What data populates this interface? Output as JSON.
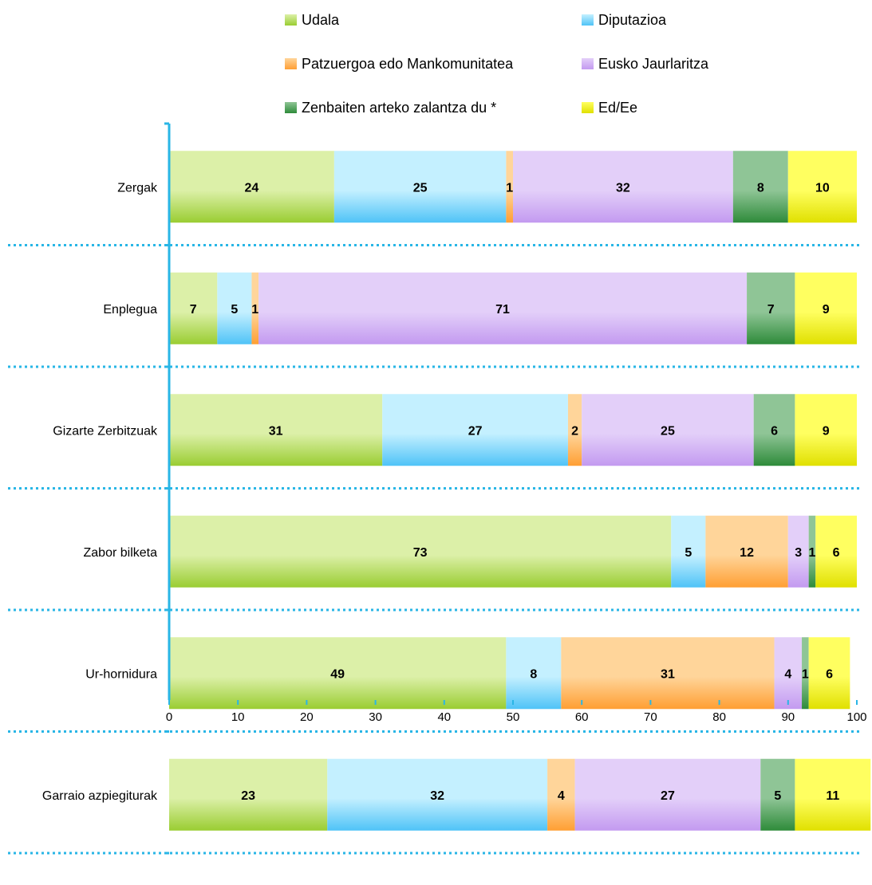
{
  "chart_data": {
    "type": "bar",
    "orientation": "horizontal",
    "stacked": true,
    "categories": [
      "Zergak",
      "Enplegua",
      "Gizarte Zerbitzuak",
      "Zabor bilketa",
      "Ur-hornidura",
      "Garraio azpiegiturak"
    ],
    "series": [
      {
        "name": "Udala",
        "values": [
          24,
          7,
          31,
          73,
          49,
          23
        ]
      },
      {
        "name": "Diputazioa",
        "values": [
          25,
          5,
          27,
          5,
          8,
          32
        ]
      },
      {
        "name": "Patzuergoa edo Mankomunitatea",
        "values": [
          1,
          1,
          2,
          12,
          31,
          4
        ]
      },
      {
        "name": "Eusko Jaurlaritza",
        "values": [
          32,
          71,
          25,
          3,
          4,
          27
        ]
      },
      {
        "name": "Zenbaiten arteko zalantza du *",
        "values": [
          8,
          7,
          6,
          1,
          1,
          5
        ]
      },
      {
        "name": "Ed/Ee",
        "values": [
          10,
          9,
          9,
          6,
          6,
          11
        ]
      }
    ],
    "series_colors": [
      "#9acd32",
      "#4fc3f7",
      "#ff9f33",
      "#c39af0",
      "#2e8b3a",
      "#e0e000"
    ],
    "series_light_colors": [
      "#dcf0a8",
      "#c4f0ff",
      "#ffd59a",
      "#e3cff9",
      "#8fc596",
      "#ffff60"
    ],
    "label_hidden": [
      [
        false,
        false,
        false,
        false,
        false,
        false
      ],
      [
        false,
        false,
        false,
        false,
        false,
        false
      ],
      [
        false,
        false,
        false,
        false,
        false,
        false
      ],
      [
        false,
        false,
        false,
        false,
        false,
        false
      ],
      [
        false,
        false,
        false,
        false,
        false,
        false
      ],
      [
        false,
        false,
        false,
        false,
        false,
        false
      ]
    ],
    "xlim": [
      0,
      100
    ],
    "xticks": [
      0,
      10,
      20,
      30,
      40,
      50,
      60,
      70,
      80,
      90,
      100
    ],
    "xlabel": "",
    "ylabel": "",
    "title": "",
    "legend_position": "top",
    "grid": false,
    "category_separators": "dotted"
  }
}
